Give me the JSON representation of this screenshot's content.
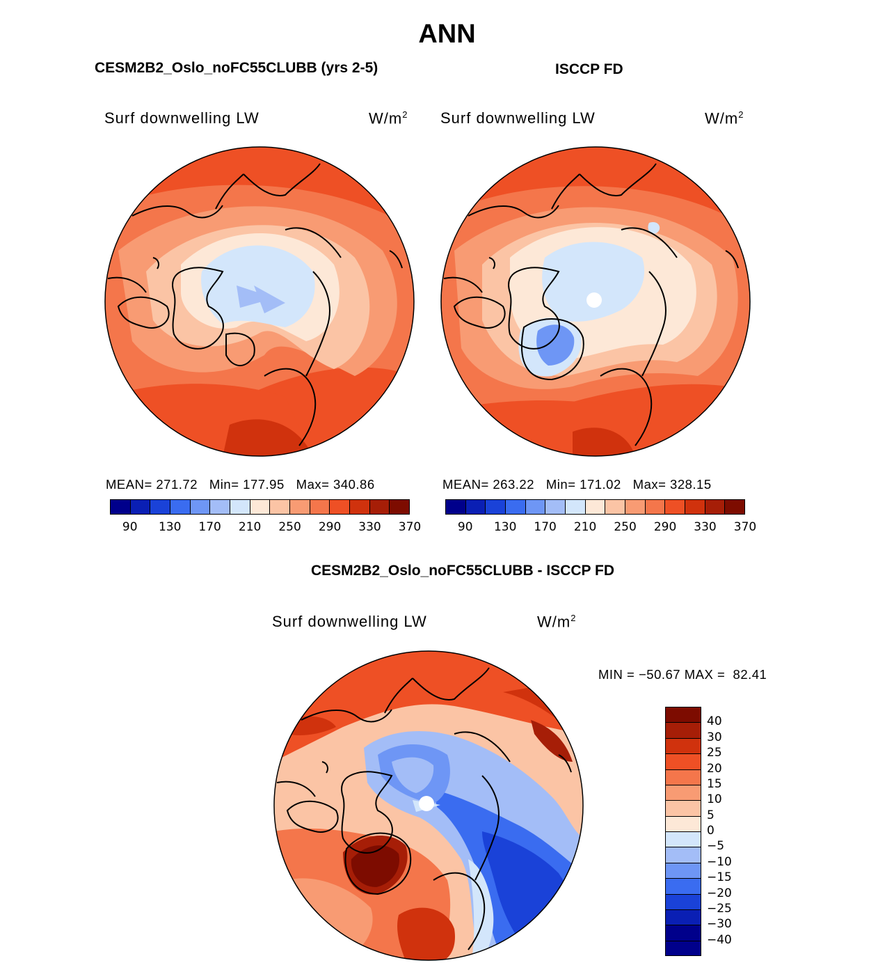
{
  "figure": {
    "title": "ANN",
    "left_panel_title": "CESM2B2_Oslo_noFC55CLUBB (yrs 2-5)",
    "right_panel_title": "ISCCP FD",
    "diff_panel_title": "CESM2B2_Oslo_noFC55CLUBB - ISCCP FD"
  },
  "panels": {
    "model": {
      "variable": "Surf downwelling LW",
      "units": "W/m",
      "units_exp": "2",
      "stats": "MEAN= 271.72   Min= 177.95   Max= 340.86"
    },
    "obs": {
      "variable": "Surf downwelling LW",
      "units": "W/m",
      "units_exp": "2",
      "stats": "MEAN= 263.22   Min= 171.02   Max= 328.15"
    },
    "diff": {
      "variable": "Surf downwelling LW",
      "units": "W/m",
      "units_exp": "2",
      "stats": "MIN = −50.67 MAX =  82.41"
    }
  },
  "colorbar_abs": {
    "colors": [
      "#00008b",
      "#0a1fb4",
      "#1a42d8",
      "#3a6cf0",
      "#6e96f5",
      "#a3bdf7",
      "#d3e6fb",
      "#fde8d7",
      "#fbc4a5",
      "#f89b73",
      "#f4764b",
      "#ee5025",
      "#d0320d",
      "#a61e07",
      "#7d0c00"
    ],
    "labels": [
      "90",
      "130",
      "170",
      "210",
      "250",
      "290",
      "330",
      "370"
    ]
  },
  "colorbar_diff": {
    "colors": [
      "#7d0c00",
      "#a61e07",
      "#d0320d",
      "#ee5025",
      "#f4764b",
      "#f89b73",
      "#fbc4a5",
      "#fde8d7",
      "#d3e6fb",
      "#a3bdf7",
      "#6e96f5",
      "#3a6cf0",
      "#1a42d8",
      "#0a1fb4",
      "#00008b"
    ],
    "labels": [
      "40",
      "30",
      "25",
      "20",
      "15",
      "10",
      "5",
      "0",
      "−5",
      "−10",
      "−15",
      "−20",
      "−25",
      "−30",
      "−40"
    ]
  }
}
